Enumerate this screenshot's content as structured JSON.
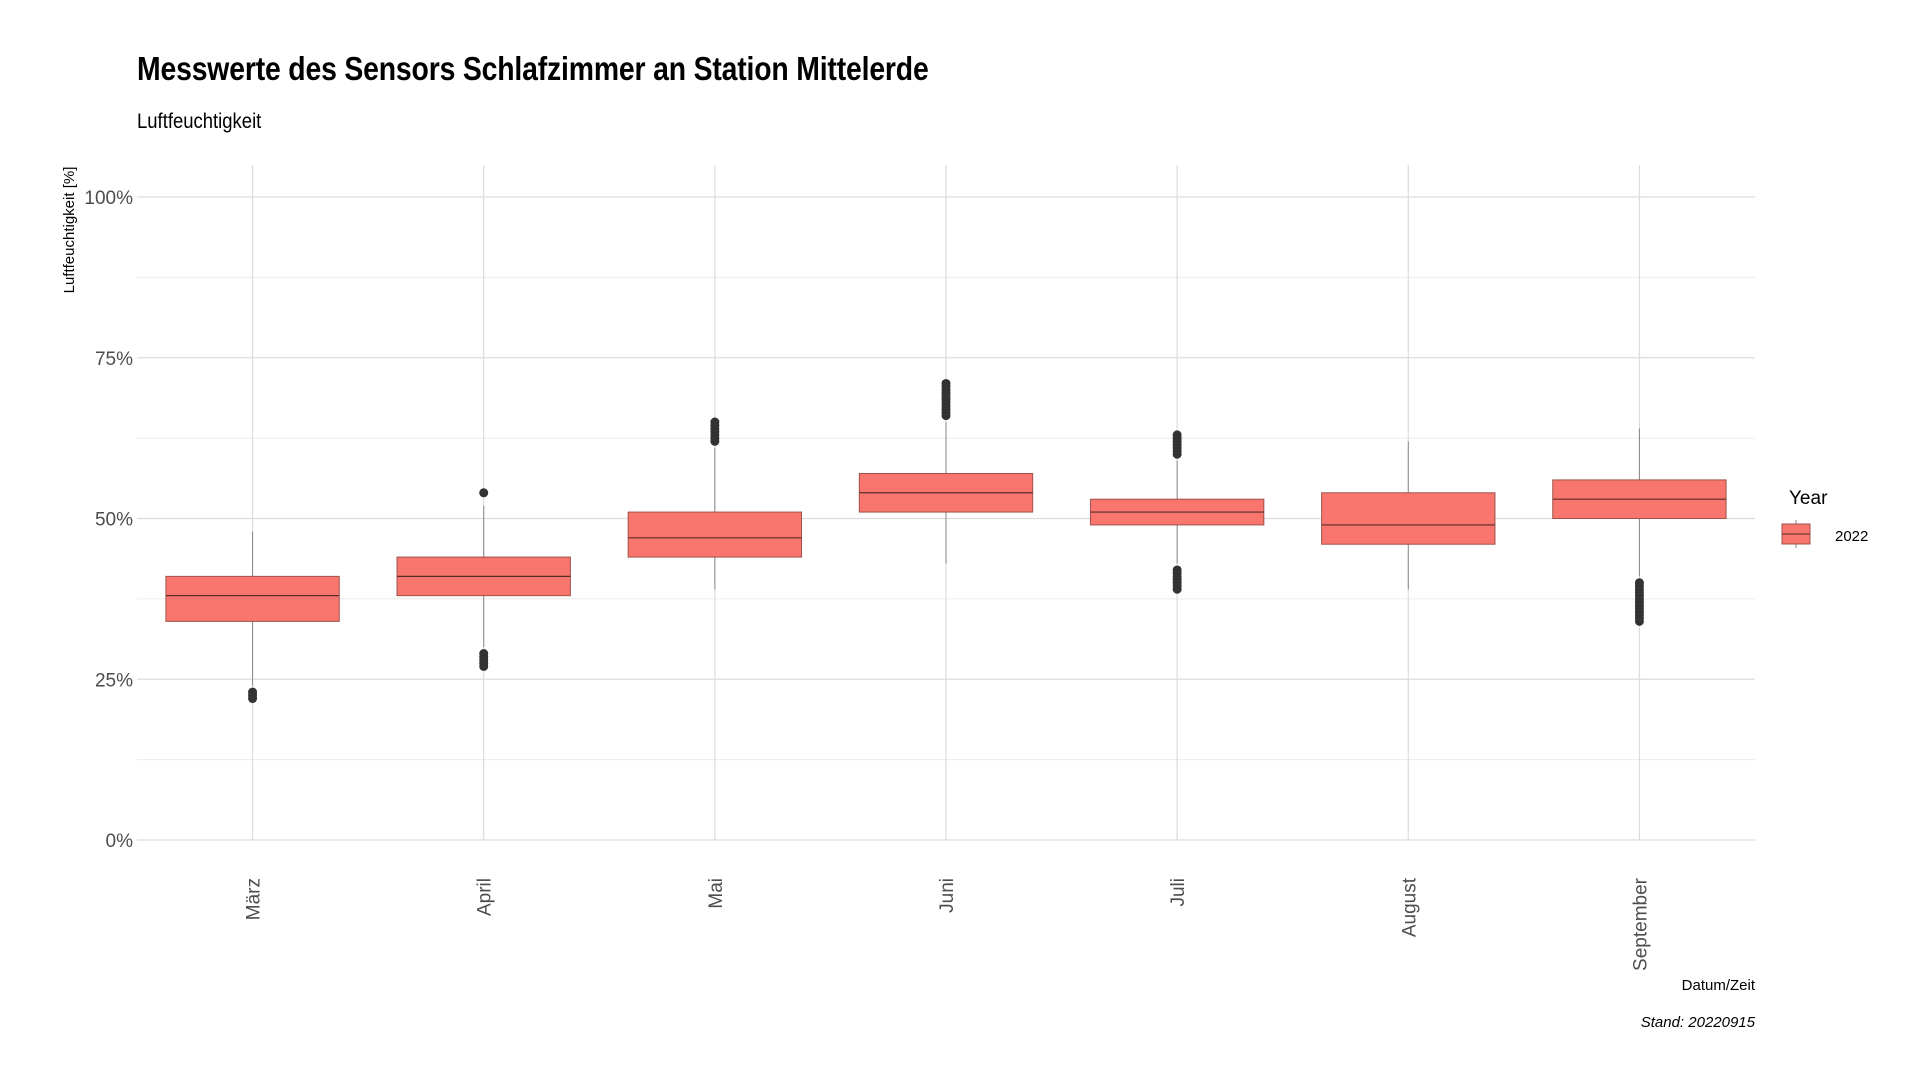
{
  "chart_data": {
    "type": "box",
    "title": "Messwerte des Sensors Schlafzimmer an Station Mittelerde",
    "subtitle": "Luftfeuchtigkeit",
    "xlabel": "Datum/Zeit",
    "ylabel": "Luftfeuchtigkeit [%]",
    "caption": "Stand: 20220915",
    "ylim": [
      0,
      100
    ],
    "y_ticks": [
      0,
      25,
      50,
      75,
      100
    ],
    "y_tick_labels": [
      "0%",
      "25%",
      "50%",
      "75%",
      "100%"
    ],
    "grid": true,
    "legend": {
      "title": "Year",
      "placement": "right",
      "entries": [
        {
          "label": "2022",
          "color": "#F8766D"
        }
      ]
    },
    "categories": [
      "März",
      "April",
      "Mai",
      "Juni",
      "Juli",
      "August",
      "September"
    ],
    "series": [
      {
        "name": "2022",
        "color": "#F8766D",
        "boxes": [
          {
            "min": 24,
            "q1": 34,
            "median": 38,
            "q3": 41,
            "max": 48,
            "outliers": [
              22,
              22.5,
              23
            ]
          },
          {
            "min": 30,
            "q1": 38,
            "median": 41,
            "q3": 44,
            "max": 52,
            "outliers": [
              27,
              27.5,
              28,
              28.5,
              29,
              54
            ]
          },
          {
            "min": 39,
            "q1": 44,
            "median": 47,
            "q3": 51,
            "max": 61,
            "outliers": [
              62,
              62.5,
              63,
              63.5,
              64,
              64.5,
              65
            ]
          },
          {
            "min": 43,
            "q1": 51,
            "median": 54,
            "q3": 57,
            "max": 65,
            "outliers": [
              66,
              66.5,
              67,
              67.5,
              68,
              68.5,
              69,
              69.5,
              70,
              70.5,
              71
            ]
          },
          {
            "min": 43,
            "q1": 49,
            "median": 51,
            "q3": 53,
            "max": 59,
            "outliers": [
              39,
              39.5,
              40,
              40.5,
              41,
              41.5,
              42,
              60,
              60.5,
              61,
              61.5,
              62,
              62.5,
              63
            ]
          },
          {
            "min": 39,
            "q1": 46,
            "median": 49,
            "q3": 54,
            "max": 62,
            "outliers": []
          },
          {
            "min": 41,
            "q1": 50,
            "median": 53,
            "q3": 56,
            "max": 64,
            "outliers": [
              34,
              34.5,
              35,
              35.5,
              36,
              36.5,
              37,
              37.5,
              38,
              38.5,
              39,
              39.5,
              40
            ]
          }
        ]
      }
    ]
  }
}
